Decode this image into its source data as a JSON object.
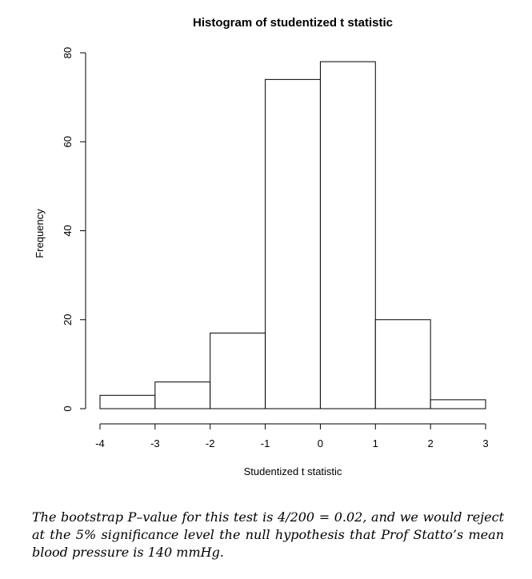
{
  "chart_data": {
    "type": "bar",
    "title": "Histogram of studentized t statistic",
    "xlabel": "Studentized t statistic",
    "ylabel": "Frequency",
    "bins": [
      {
        "from": -4,
        "to": -3,
        "count": 3
      },
      {
        "from": -3,
        "to": -2,
        "count": 6
      },
      {
        "from": -2,
        "to": -1,
        "count": 17
      },
      {
        "from": -1,
        "to": 0,
        "count": 74
      },
      {
        "from": 0,
        "to": 1,
        "count": 78
      },
      {
        "from": 1,
        "to": 2,
        "count": 20
      },
      {
        "from": 2,
        "to": 3,
        "count": 2
      }
    ],
    "xticks": [
      -4,
      -3,
      -2,
      -1,
      0,
      1,
      2,
      3
    ],
    "yticks": [
      0,
      20,
      40,
      60,
      80
    ],
    "xlim": [
      -4,
      3
    ],
    "ylim": [
      0,
      80
    ],
    "grid": false,
    "legend": "none"
  },
  "caption": {
    "text": "The bootstrap P–value for this test is 4/200 = 0.02, and we would reject at the 5% significance level the null hypothesis that Prof Statto’s mean blood pressure is 140 mmHg."
  }
}
